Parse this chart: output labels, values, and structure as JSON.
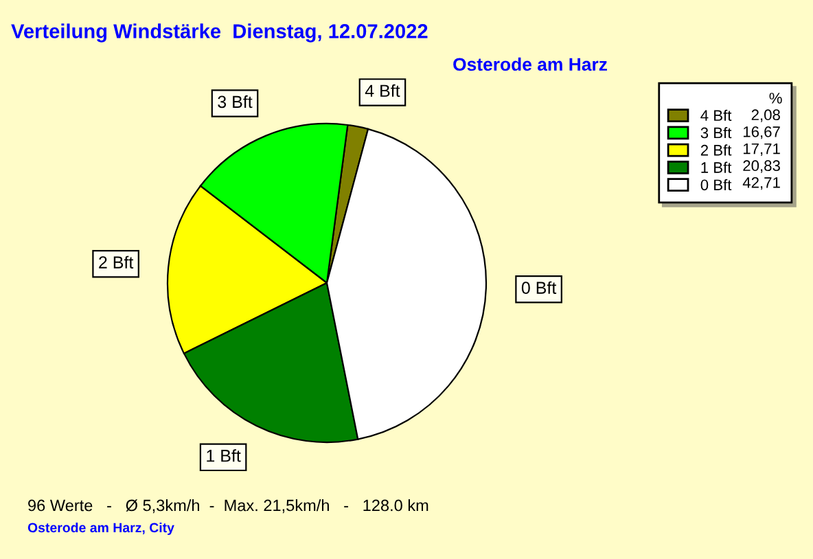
{
  "chart_data": {
    "type": "pie",
    "title": "Verteilung Windstärke  Dienstag, 12.07.2022",
    "subtitle": "Osterode am Harz",
    "legend_title": "%",
    "legend": "top right",
    "categories": [
      "4 Bft",
      "3 Bft",
      "2 Bft",
      "1 Bft",
      "0 Bft"
    ],
    "values": [
      2.08,
      16.67,
      17.71,
      20.83,
      42.71
    ],
    "colors": [
      "#808000",
      "#00ff00",
      "#ffff00",
      "#008000",
      "#ffffff"
    ],
    "value_labels": [
      "2,08",
      "16,67",
      "17,71",
      "20,83",
      "42,71"
    ],
    "annotations": [
      "96 Werte   -   Ø 5,3km/h  -  Max. 21,5km/h   -   128.0 km",
      "Osterode am Harz, City"
    ]
  }
}
